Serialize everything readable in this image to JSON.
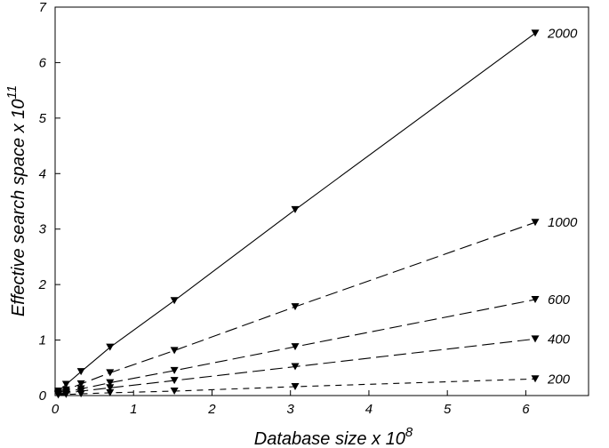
{
  "chart_data": {
    "type": "line",
    "title": "",
    "xlabel": {
      "text": "Database size x 10",
      "exponent": "8"
    },
    "ylabel": {
      "text": "Effective search space x 10",
      "exponent": "11"
    },
    "xlim": [
      0,
      6.8
    ],
    "ylim": [
      0,
      7
    ],
    "xticks": [
      0,
      1,
      2,
      3,
      4,
      5,
      6
    ],
    "yticks": [
      0,
      1,
      2,
      3,
      4,
      5,
      6,
      7
    ],
    "grid": false,
    "legend": "none",
    "x": [
      0.04,
      0.14,
      0.33,
      0.7,
      1.52,
      3.06,
      6.12
    ],
    "series": [
      {
        "name": "2000",
        "dash": "solid",
        "values": [
          0.08,
          0.2,
          0.43,
          0.87,
          1.71,
          3.35,
          6.53
        ]
      },
      {
        "name": "1000",
        "dash": "long-dash",
        "values": [
          0.05,
          0.1,
          0.21,
          0.41,
          0.81,
          1.6,
          3.12
        ]
      },
      {
        "name": "600",
        "dash": "long-dash",
        "values": [
          0.03,
          0.06,
          0.12,
          0.23,
          0.45,
          0.88,
          1.73
        ]
      },
      {
        "name": "400",
        "dash": "long-dash",
        "values": [
          0.02,
          0.04,
          0.08,
          0.14,
          0.27,
          0.52,
          1.02
        ]
      },
      {
        "name": "200",
        "dash": "short-dash",
        "values": [
          0.01,
          0.02,
          0.03,
          0.05,
          0.08,
          0.16,
          0.3
        ]
      }
    ],
    "marker": "filled-down-triangle",
    "colors": {
      "line": "#000000",
      "marker": "#000000",
      "background": "#ffffff"
    }
  }
}
